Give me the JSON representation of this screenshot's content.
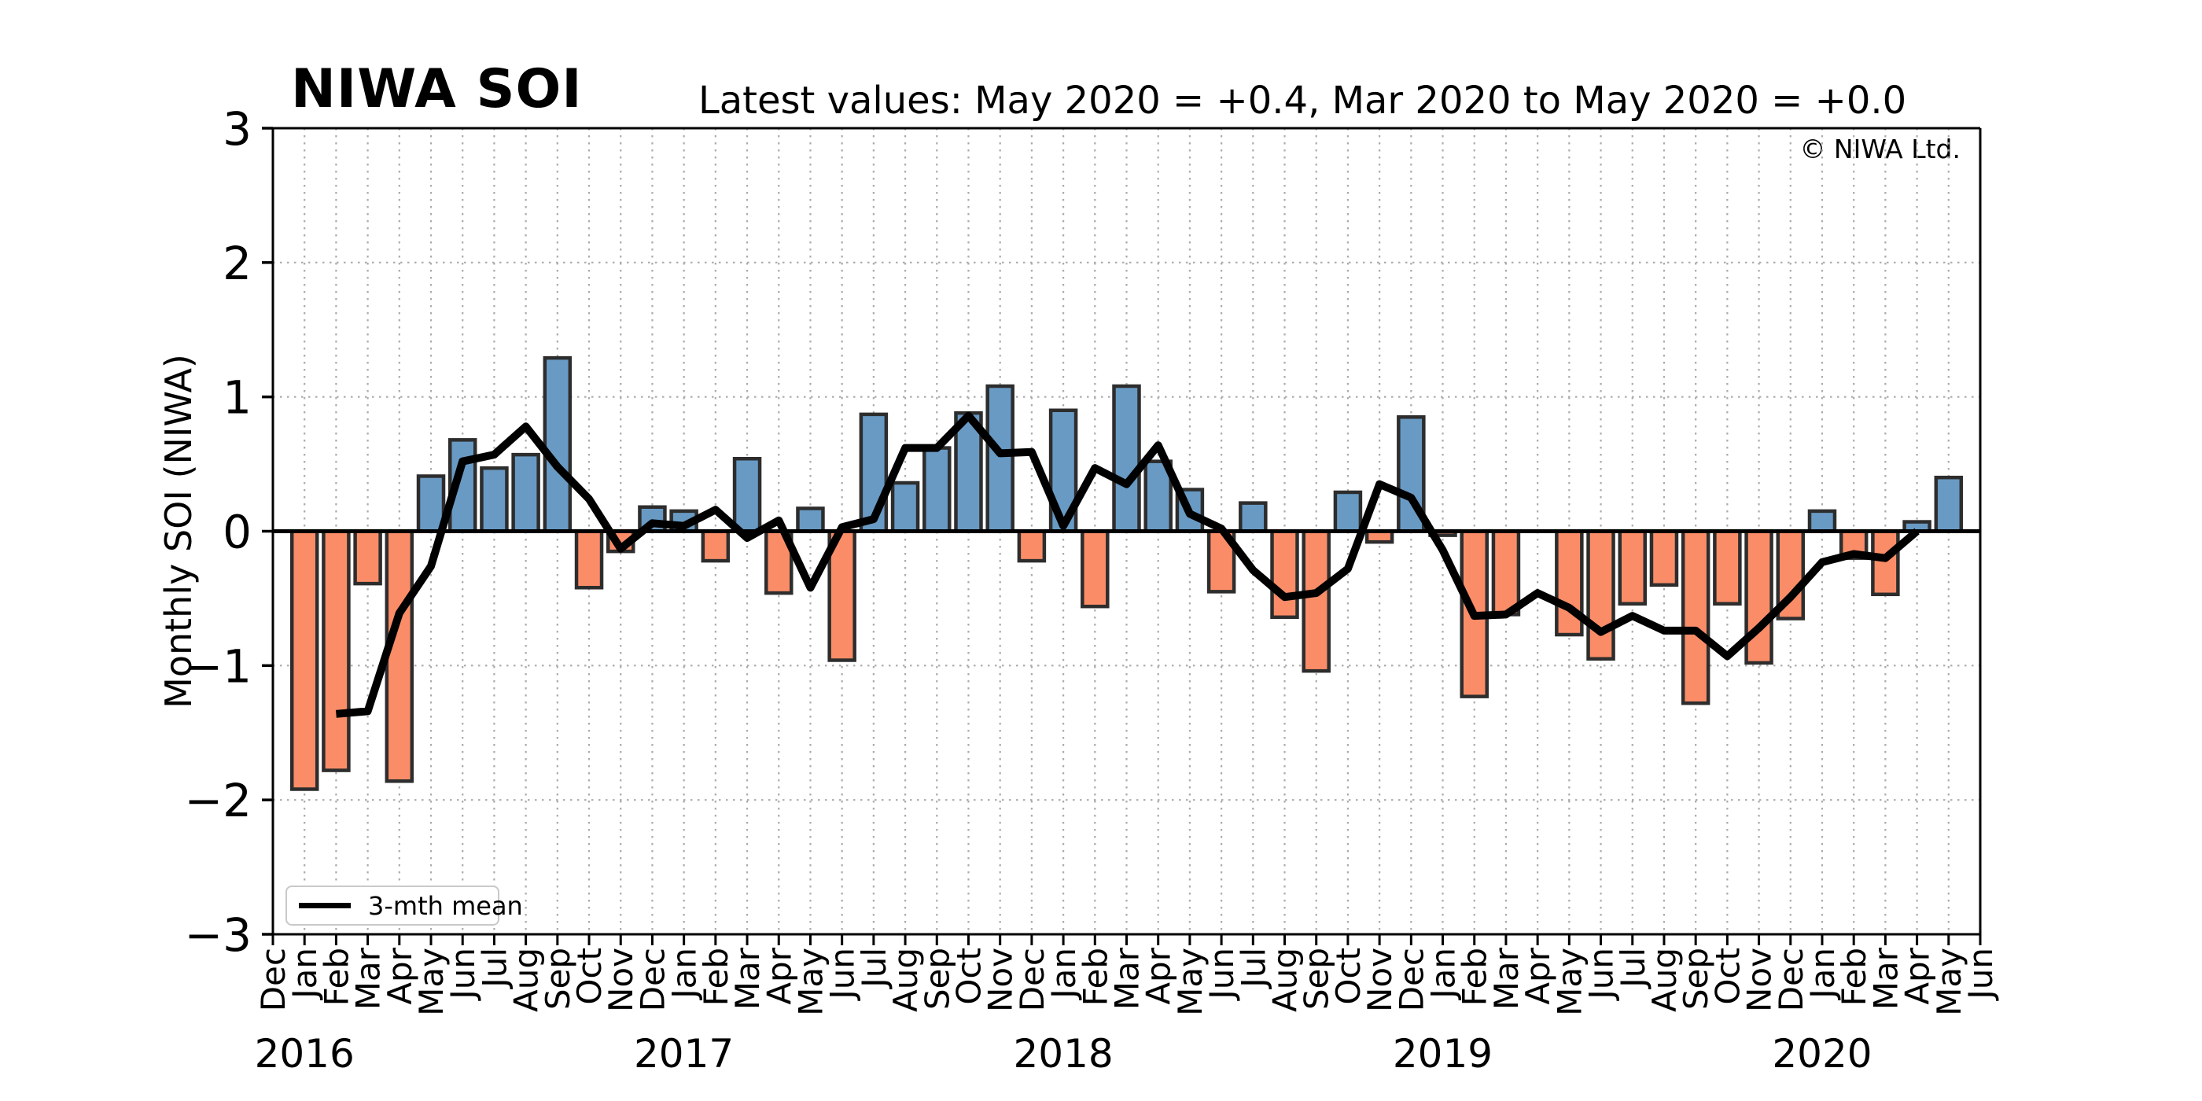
{
  "header": {
    "title": "NIWA SOI",
    "subtitle": "Latest values: May 2020 = +0.4, Mar 2020 to May 2020 = +0.0",
    "copyright": "© NIWA Ltd."
  },
  "legend": {
    "label": "3-mth mean"
  },
  "y_axis": {
    "label": "Monthly SOI (NIWA)",
    "tick_labels": [
      "3",
      "2",
      "1",
      "0",
      "−1",
      "−2",
      "−3"
    ],
    "tick_values": [
      3,
      2,
      1,
      0,
      -1,
      -2,
      -3
    ]
  },
  "x_axis": {
    "month_labels": [
      "Dec",
      "Jan",
      "Feb",
      "Mar",
      "Apr",
      "May",
      "Jun",
      "Jul",
      "Aug",
      "Sep",
      "Oct",
      "Nov",
      "Dec",
      "Jan",
      "Feb",
      "Mar",
      "Apr",
      "May",
      "Jun",
      "Jul",
      "Aug",
      "Sep",
      "Oct",
      "Nov",
      "Dec",
      "Jan",
      "Feb",
      "Mar",
      "Apr",
      "May",
      "Jun",
      "Jul",
      "Aug",
      "Sep",
      "Oct",
      "Nov",
      "Dec",
      "Jan",
      "Feb",
      "Mar",
      "Apr",
      "May",
      "Jun",
      "Jul",
      "Aug",
      "Sep",
      "Oct",
      "Nov",
      "Dec",
      "Jan",
      "Feb",
      "Mar",
      "Apr",
      "May",
      "Jun"
    ],
    "year_labels": [
      {
        "label": "2016",
        "index": 1
      },
      {
        "label": "2017",
        "index": 13
      },
      {
        "label": "2018",
        "index": 25
      },
      {
        "label": "2019",
        "index": 37
      },
      {
        "label": "2020",
        "index": 49
      }
    ]
  },
  "chart_data": {
    "type": "bar",
    "title": "NIWA SOI",
    "ylabel": "Monthly SOI (NIWA)",
    "ylim": [
      -3,
      3
    ],
    "grid": true,
    "legend_position": "lower left",
    "x": [
      "Dec 2015",
      "Jan 2016",
      "Feb 2016",
      "Mar 2016",
      "Apr 2016",
      "May 2016",
      "Jun 2016",
      "Jul 2016",
      "Aug 2016",
      "Sep 2016",
      "Oct 2016",
      "Nov 2016",
      "Dec 2016",
      "Jan 2017",
      "Feb 2017",
      "Mar 2017",
      "Apr 2017",
      "May 2017",
      "Jun 2017",
      "Jul 2017",
      "Aug 2017",
      "Sep 2017",
      "Oct 2017",
      "Nov 2017",
      "Dec 2017",
      "Jan 2018",
      "Feb 2018",
      "Mar 2018",
      "Apr 2018",
      "May 2018",
      "Jun 2018",
      "Jul 2018",
      "Aug 2018",
      "Sep 2018",
      "Oct 2018",
      "Nov 2018",
      "Dec 2018",
      "Jan 2019",
      "Feb 2019",
      "Mar 2019",
      "Apr 2019",
      "May 2019",
      "Jun 2019",
      "Jul 2019",
      "Aug 2019",
      "Sep 2019",
      "Oct 2019",
      "Nov 2019",
      "Dec 2019",
      "Jan 2020",
      "Feb 2020",
      "Mar 2020",
      "Apr 2020",
      "May 2020",
      "Jun 2020"
    ],
    "series": [
      {
        "name": "Monthly SOI",
        "type": "bar",
        "values": [
          null,
          -1.92,
          -1.78,
          -0.39,
          -1.86,
          0.41,
          0.68,
          0.47,
          0.57,
          1.29,
          -0.42,
          -0.15,
          0.18,
          0.15,
          -0.22,
          0.54,
          -0.46,
          0.17,
          -0.96,
          0.87,
          0.36,
          0.62,
          0.88,
          1.08,
          -0.22,
          0.9,
          -0.56,
          1.08,
          0.52,
          0.31,
          -0.45,
          0.21,
          -0.64,
          -1.04,
          0.29,
          -0.08,
          0.85,
          -0.03,
          -1.23,
          -0.62,
          0.0,
          -0.77,
          -0.95,
          -0.54,
          -0.4,
          -1.28,
          -0.54,
          -0.98,
          -0.65,
          0.15,
          -0.2,
          -0.47,
          0.07,
          0.4,
          null
        ]
      },
      {
        "name": "3-mth mean",
        "type": "line",
        "values": [
          null,
          null,
          -1.36,
          -1.34,
          -0.61,
          -0.26,
          0.52,
          0.57,
          0.78,
          0.48,
          0.24,
          -0.13,
          0.06,
          0.04,
          0.16,
          -0.05,
          0.08,
          -0.42,
          0.03,
          0.09,
          0.62,
          0.62,
          0.86,
          0.58,
          0.59,
          0.04,
          0.47,
          0.35,
          0.64,
          0.13,
          0.02,
          -0.29,
          -0.49,
          -0.46,
          -0.28,
          0.35,
          0.25,
          -0.14,
          -0.63,
          -0.62,
          -0.46,
          -0.57,
          -0.75,
          -0.63,
          -0.74,
          -0.74,
          -0.93,
          -0.72,
          -0.49,
          -0.23,
          -0.17,
          -0.2,
          0.0,
          null,
          null
        ]
      }
    ],
    "colors": {
      "bar_positive": "#689AC4",
      "bar_negative": "#FA8D68",
      "bar_edge": "#2D2D2D",
      "line": "#000000",
      "grid": "#ABABAB",
      "spine": "#000000"
    }
  }
}
